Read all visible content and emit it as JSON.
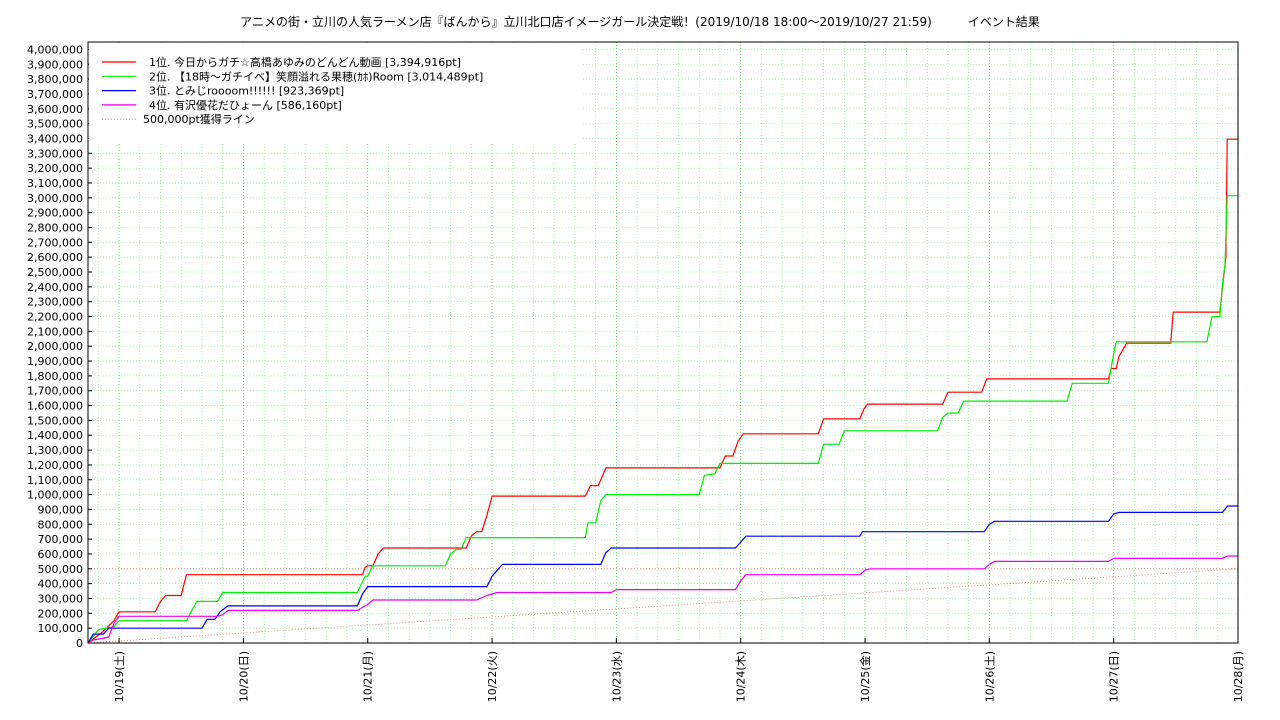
{
  "chart_data": {
    "type": "line",
    "title": "アニメの街・立川の人気ラーメン店『ばんから』立川北口店イメージガール決定戦！(2019/10/18 18:00〜2019/10/27 21:59)　　　イベント結果",
    "xlabel": "",
    "ylabel": "",
    "x_range": [
      "2019-10-18 18:00",
      "2019-10-28 00:00"
    ],
    "ylim": [
      0,
      4050000
    ],
    "y_ticks": [
      0,
      100000,
      200000,
      300000,
      400000,
      500000,
      600000,
      700000,
      800000,
      900000,
      1000000,
      1100000,
      1200000,
      1300000,
      1400000,
      1500000,
      1600000,
      1700000,
      1800000,
      1900000,
      2000000,
      2100000,
      2200000,
      2300000,
      2400000,
      2500000,
      2600000,
      2700000,
      2800000,
      2900000,
      3000000,
      3100000,
      3200000,
      3300000,
      3400000,
      3500000,
      3600000,
      3700000,
      3800000,
      3900000,
      4000000
    ],
    "y_tick_labels": [
      "0",
      "100,000",
      "200,000",
      "300,000",
      "400,000",
      "500,000",
      "600,000",
      "700,000",
      "800,000",
      "900,000",
      "1,000,000",
      "1,100,000",
      "1,200,000",
      "1,300,000",
      "1,400,000",
      "1,500,000",
      "1,600,000",
      "1,700,000",
      "1,800,000",
      "1,900,000",
      "2,000,000",
      "2,100,000",
      "2,200,000",
      "2,300,000",
      "2,400,000",
      "2,500,000",
      "2,600,000",
      "2,700,000",
      "2,800,000",
      "2,900,000",
      "3,000,000",
      "3,100,000",
      "3,200,000",
      "3,300,000",
      "3,400,000",
      "3,500,000",
      "3,600,000",
      "3,700,000",
      "3,800,000",
      "3,900,000",
      "4,000,000"
    ],
    "x_ticks": [
      "2019-10-19 00:00",
      "2019-10-20 00:00",
      "2019-10-21 00:00",
      "2019-10-22 00:00",
      "2019-10-23 00:00",
      "2019-10-24 00:00",
      "2019-10-25 00:00",
      "2019-10-26 00:00",
      "2019-10-27 00:00",
      "2019-10-28 00:00"
    ],
    "x_tick_labels": [
      "10/19(土)",
      "10/20(日)",
      "10/21(月)",
      "10/22(火)",
      "10/23(水)",
      "10/24(木)",
      "10/25(金)",
      "10/26(土)",
      "10/27(日)",
      "10/28(月)"
    ],
    "grid": true,
    "legend_position": "top-left",
    "series": [
      {
        "name": "1位. 今日からガチ☆高橋あゆみのどんどん動画 [3,394,916pt]",
        "color": "#ff0000",
        "points": [
          [
            "2019-10-18 18:00",
            0
          ],
          [
            "2019-10-18 21:00",
            80000
          ],
          [
            "2019-10-18 23:00",
            150000
          ],
          [
            "2019-10-19 00:00",
            210000
          ],
          [
            "2019-10-19 07:00",
            210000
          ],
          [
            "2019-10-19 08:00",
            280000
          ],
          [
            "2019-10-19 09:00",
            320000
          ],
          [
            "2019-10-19 12:00",
            320000
          ],
          [
            "2019-10-19 13:00",
            460000
          ],
          [
            "2019-10-20 23:00",
            460000
          ],
          [
            "2019-10-20 23:30",
            510000
          ],
          [
            "2019-10-21 00:00",
            520000
          ],
          [
            "2019-10-21 01:00",
            520000
          ],
          [
            "2019-10-21 02:00",
            600000
          ],
          [
            "2019-10-21 03:00",
            640000
          ],
          [
            "2019-10-21 19:00",
            640000
          ],
          [
            "2019-10-21 20:00",
            720000
          ],
          [
            "2019-10-21 21:00",
            750000
          ],
          [
            "2019-10-21 22:00",
            750000
          ],
          [
            "2019-10-21 23:00",
            860000
          ],
          [
            "2019-10-22 00:00",
            990000
          ],
          [
            "2019-10-22 18:00",
            990000
          ],
          [
            "2019-10-22 19:00",
            1060000
          ],
          [
            "2019-10-22 20:30",
            1060000
          ],
          [
            "2019-10-22 22:00",
            1180000
          ],
          [
            "2019-10-23 20:00",
            1180000
          ],
          [
            "2019-10-23 21:00",
            1260000
          ],
          [
            "2019-10-23 22:30",
            1260000
          ],
          [
            "2019-10-23 23:30",
            1360000
          ],
          [
            "2019-10-24 00:30",
            1410000
          ],
          [
            "2019-10-24 15:00",
            1410000
          ],
          [
            "2019-10-24 16:00",
            1510000
          ],
          [
            "2019-10-24 23:00",
            1510000
          ],
          [
            "2019-10-24 23:50",
            1580000
          ],
          [
            "2019-10-25 00:30",
            1610000
          ],
          [
            "2019-10-25 15:00",
            1610000
          ],
          [
            "2019-10-25 16:00",
            1690000
          ],
          [
            "2019-10-25 22:30",
            1690000
          ],
          [
            "2019-10-25 23:30",
            1780000
          ],
          [
            "2019-10-26 23:00",
            1780000
          ],
          [
            "2019-10-26 23:30",
            1850000
          ],
          [
            "2019-10-27 00:30",
            1850000
          ],
          [
            "2019-10-27 01:00",
            1930000
          ],
          [
            "2019-10-27 02:30",
            2020000
          ],
          [
            "2019-10-27 11:00",
            2020000
          ],
          [
            "2019-10-27 11:30",
            2230000
          ],
          [
            "2019-10-27 20:30",
            2230000
          ],
          [
            "2019-10-27 21:00",
            2400000
          ],
          [
            "2019-10-27 21:40",
            2600000
          ],
          [
            "2019-10-27 21:55",
            3394916
          ],
          [
            "2019-10-28 00:00",
            3394916
          ]
        ]
      },
      {
        "name": "2位. 【18時〜ガチイベ】笑顔溢れる果穂(ｶﾎ)Room [3,014,489pt]",
        "color": "#00ee00",
        "points": [
          [
            "2019-10-18 18:00",
            0
          ],
          [
            "2019-10-18 20:00",
            90000
          ],
          [
            "2019-10-18 23:00",
            110000
          ],
          [
            "2019-10-19 00:00",
            150000
          ],
          [
            "2019-10-19 13:00",
            150000
          ],
          [
            "2019-10-19 15:00",
            280000
          ],
          [
            "2019-10-19 19:00",
            280000
          ],
          [
            "2019-10-19 20:00",
            340000
          ],
          [
            "2019-10-20 22:00",
            340000
          ],
          [
            "2019-10-20 23:30",
            450000
          ],
          [
            "2019-10-21 00:00",
            450000
          ],
          [
            "2019-10-21 01:00",
            520000
          ],
          [
            "2019-10-21 15:00",
            520000
          ],
          [
            "2019-10-21 16:00",
            600000
          ],
          [
            "2019-10-21 17:00",
            630000
          ],
          [
            "2019-10-21 18:00",
            630000
          ],
          [
            "2019-10-21 19:00",
            710000
          ],
          [
            "2019-10-22 18:00",
            710000
          ],
          [
            "2019-10-22 18:30",
            810000
          ],
          [
            "2019-10-22 20:00",
            810000
          ],
          [
            "2019-10-22 21:00",
            960000
          ],
          [
            "2019-10-22 22:00",
            1000000
          ],
          [
            "2019-10-23 16:00",
            1000000
          ],
          [
            "2019-10-23 17:00",
            1130000
          ],
          [
            "2019-10-23 19:00",
            1140000
          ],
          [
            "2019-10-23 20:00",
            1210000
          ],
          [
            "2019-10-24 15:00",
            1210000
          ],
          [
            "2019-10-24 16:00",
            1340000
          ],
          [
            "2019-10-24 19:00",
            1340000
          ],
          [
            "2019-10-24 20:00",
            1430000
          ],
          [
            "2019-10-25 14:00",
            1430000
          ],
          [
            "2019-10-25 15:00",
            1520000
          ],
          [
            "2019-10-25 16:00",
            1550000
          ],
          [
            "2019-10-25 18:00",
            1550000
          ],
          [
            "2019-10-25 19:00",
            1630000
          ],
          [
            "2019-10-26 15:00",
            1630000
          ],
          [
            "2019-10-26 16:00",
            1750000
          ],
          [
            "2019-10-26 23:00",
            1750000
          ],
          [
            "2019-10-27 00:00",
            1950000
          ],
          [
            "2019-10-27 00:30",
            2030000
          ],
          [
            "2019-10-27 18:00",
            2030000
          ],
          [
            "2019-10-27 19:00",
            2200000
          ],
          [
            "2019-10-27 20:30",
            2200000
          ],
          [
            "2019-10-27 21:00",
            2420000
          ],
          [
            "2019-10-27 21:30",
            2550000
          ],
          [
            "2019-10-27 21:55",
            3014489
          ],
          [
            "2019-10-28 00:00",
            3014489
          ]
        ]
      },
      {
        "name": "3位. とみじroooom!!!!!! [923,369pt]",
        "color": "#0000ff",
        "points": [
          [
            "2019-10-18 18:00",
            0
          ],
          [
            "2019-10-18 19:00",
            60000
          ],
          [
            "2019-10-18 21:00",
            60000
          ],
          [
            "2019-10-18 22:00",
            100000
          ],
          [
            "2019-10-19 16:00",
            100000
          ],
          [
            "2019-10-19 17:00",
            160000
          ],
          [
            "2019-10-19 18:30",
            160000
          ],
          [
            "2019-10-19 19:30",
            210000
          ],
          [
            "2019-10-19 21:00",
            250000
          ],
          [
            "2019-10-20 22:00",
            250000
          ],
          [
            "2019-10-20 23:00",
            330000
          ],
          [
            "2019-10-21 00:00",
            380000
          ],
          [
            "2019-10-21 23:00",
            380000
          ],
          [
            "2019-10-22 00:00",
            450000
          ],
          [
            "2019-10-22 01:00",
            490000
          ],
          [
            "2019-10-22 02:00",
            530000
          ],
          [
            "2019-10-22 21:00",
            530000
          ],
          [
            "2019-10-22 22:00",
            610000
          ],
          [
            "2019-10-22 23:00",
            640000
          ],
          [
            "2019-10-23 23:00",
            640000
          ],
          [
            "2019-10-24 00:00",
            680000
          ],
          [
            "2019-10-24 01:00",
            720000
          ],
          [
            "2019-10-24 23:00",
            720000
          ],
          [
            "2019-10-24 23:30",
            750000
          ],
          [
            "2019-10-25 23:00",
            750000
          ],
          [
            "2019-10-26 00:00",
            800000
          ],
          [
            "2019-10-26 01:00",
            820000
          ],
          [
            "2019-10-26 23:00",
            820000
          ],
          [
            "2019-10-27 00:00",
            870000
          ],
          [
            "2019-10-27 01:00",
            880000
          ],
          [
            "2019-10-27 21:00",
            880000
          ],
          [
            "2019-10-27 21:59",
            923369
          ],
          [
            "2019-10-28 00:00",
            923369
          ]
        ]
      },
      {
        "name": "4位. 有沢優花だひょーん [586,160pt]",
        "color": "#ee00ee",
        "points": [
          [
            "2019-10-18 18:00",
            0
          ],
          [
            "2019-10-18 19:00",
            20000
          ],
          [
            "2019-10-18 22:00",
            40000
          ],
          [
            "2019-10-18 23:00",
            130000
          ],
          [
            "2019-10-19 00:00",
            180000
          ],
          [
            "2019-10-19 19:00",
            180000
          ],
          [
            "2019-10-19 20:00",
            190000
          ],
          [
            "2019-10-19 21:00",
            220000
          ],
          [
            "2019-10-20 22:00",
            220000
          ],
          [
            "2019-10-21 00:00",
            260000
          ],
          [
            "2019-10-21 01:00",
            290000
          ],
          [
            "2019-10-21 21:00",
            290000
          ],
          [
            "2019-10-21 23:00",
            320000
          ],
          [
            "2019-10-22 01:00",
            340000
          ],
          [
            "2019-10-22 23:00",
            340000
          ],
          [
            "2019-10-23 00:00",
            360000
          ],
          [
            "2019-10-23 23:00",
            360000
          ],
          [
            "2019-10-24 00:00",
            420000
          ],
          [
            "2019-10-24 01:00",
            460000
          ],
          [
            "2019-10-24 23:00",
            460000
          ],
          [
            "2019-10-25 00:00",
            490000
          ],
          [
            "2019-10-25 01:00",
            500000
          ],
          [
            "2019-10-25 23:00",
            500000
          ],
          [
            "2019-10-26 00:00",
            530000
          ],
          [
            "2019-10-26 01:00",
            550000
          ],
          [
            "2019-10-26 23:00",
            550000
          ],
          [
            "2019-10-27 00:00",
            570000
          ],
          [
            "2019-10-27 21:00",
            570000
          ],
          [
            "2019-10-27 21:59",
            586160
          ],
          [
            "2019-10-28 00:00",
            586160
          ]
        ]
      }
    ],
    "reference_line": {
      "name": "500,000pt獲得ライン",
      "color": "#d08070",
      "dashed": true,
      "points": [
        [
          "2019-10-18 18:00",
          0
        ],
        [
          "2019-10-28 00:00",
          500000
        ]
      ],
      "horizontal_value": 500000
    }
  }
}
